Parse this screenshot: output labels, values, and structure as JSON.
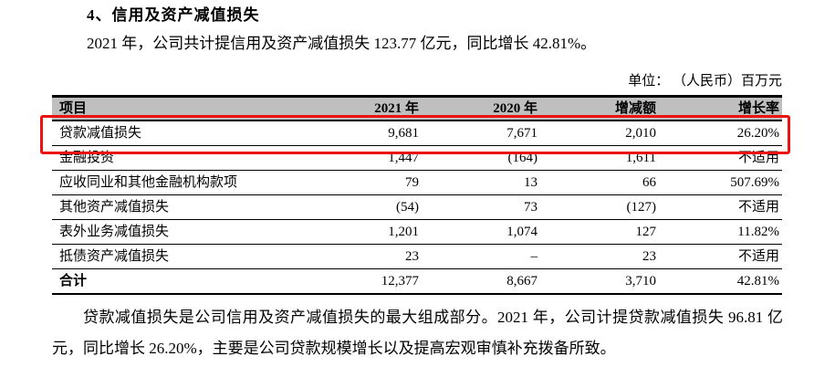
{
  "page": {
    "section_title": "4、信用及资产减值损失",
    "intro_paragraph": "2021 年，公司共计提信用及资产减值损失 123.77 亿元，同比增长 42.81%。",
    "unit_note": "单位： （人民币）百万元",
    "footer_paragraph": "贷款减值损失是公司信用及资产减值损失的最大组成部分。2021 年，公司计提贷款减值损失 96.81 亿元，同比增长 26.20%，主要是公司贷款规模增长以及提高宏观审慎补充拨备所致。"
  },
  "table": {
    "columns": [
      "项目",
      "2021 年",
      "2020 年",
      "增减额",
      "增长率"
    ],
    "rows": [
      [
        "贷款减值损失",
        "9,681",
        "7,671",
        "2,010",
        "26.20%"
      ],
      [
        "金融投资",
        "1,447",
        "(164)",
        "1,611",
        "不适用"
      ],
      [
        "应收同业和其他金融机构款项",
        "79",
        "13",
        "66",
        "507.69%"
      ],
      [
        "其他资产减值损失",
        "(54)",
        "73",
        "(127)",
        "不适用"
      ],
      [
        "表外业务减值损失",
        "1,201",
        "1,074",
        "127",
        "11.82%"
      ],
      [
        "抵债资产减值损失",
        "23",
        "–",
        "23",
        "不适用"
      ],
      [
        "合计",
        "12,377",
        "8,667",
        "3,710",
        "42.81%"
      ]
    ],
    "highlighted_row": "贷款减值损失",
    "total_row_label": "合计"
  },
  "colors": {
    "header_bg": "#bfbfbf",
    "highlight_border": "#ee1111",
    "text": "#000000",
    "background": "#ffffff"
  }
}
